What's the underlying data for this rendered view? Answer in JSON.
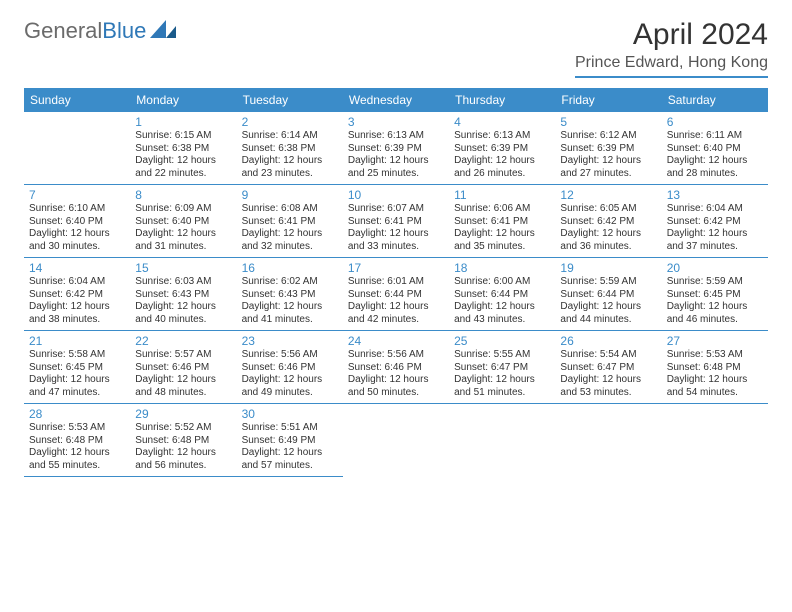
{
  "brand": {
    "part1": "General",
    "part2": "Blue"
  },
  "title": "April 2024",
  "location": "Prince Edward, Hong Kong",
  "header_bg": "#3b8cc9",
  "text_color": "#333333",
  "daynum_color": "#3b8cc9",
  "border_color": "#3b8cc9",
  "font_family": "Arial, Helvetica, sans-serif",
  "day_names": [
    "Sunday",
    "Monday",
    "Tuesday",
    "Wednesday",
    "Thursday",
    "Friday",
    "Saturday"
  ],
  "weeks": [
    [
      null,
      {
        "n": "1",
        "sr": "Sunrise: 6:15 AM",
        "ss": "Sunset: 6:38 PM",
        "d1": "Daylight: 12 hours",
        "d2": "and 22 minutes."
      },
      {
        "n": "2",
        "sr": "Sunrise: 6:14 AM",
        "ss": "Sunset: 6:38 PM",
        "d1": "Daylight: 12 hours",
        "d2": "and 23 minutes."
      },
      {
        "n": "3",
        "sr": "Sunrise: 6:13 AM",
        "ss": "Sunset: 6:39 PM",
        "d1": "Daylight: 12 hours",
        "d2": "and 25 minutes."
      },
      {
        "n": "4",
        "sr": "Sunrise: 6:13 AM",
        "ss": "Sunset: 6:39 PM",
        "d1": "Daylight: 12 hours",
        "d2": "and 26 minutes."
      },
      {
        "n": "5",
        "sr": "Sunrise: 6:12 AM",
        "ss": "Sunset: 6:39 PM",
        "d1": "Daylight: 12 hours",
        "d2": "and 27 minutes."
      },
      {
        "n": "6",
        "sr": "Sunrise: 6:11 AM",
        "ss": "Sunset: 6:40 PM",
        "d1": "Daylight: 12 hours",
        "d2": "and 28 minutes."
      }
    ],
    [
      {
        "n": "7",
        "sr": "Sunrise: 6:10 AM",
        "ss": "Sunset: 6:40 PM",
        "d1": "Daylight: 12 hours",
        "d2": "and 30 minutes."
      },
      {
        "n": "8",
        "sr": "Sunrise: 6:09 AM",
        "ss": "Sunset: 6:40 PM",
        "d1": "Daylight: 12 hours",
        "d2": "and 31 minutes."
      },
      {
        "n": "9",
        "sr": "Sunrise: 6:08 AM",
        "ss": "Sunset: 6:41 PM",
        "d1": "Daylight: 12 hours",
        "d2": "and 32 minutes."
      },
      {
        "n": "10",
        "sr": "Sunrise: 6:07 AM",
        "ss": "Sunset: 6:41 PM",
        "d1": "Daylight: 12 hours",
        "d2": "and 33 minutes."
      },
      {
        "n": "11",
        "sr": "Sunrise: 6:06 AM",
        "ss": "Sunset: 6:41 PM",
        "d1": "Daylight: 12 hours",
        "d2": "and 35 minutes."
      },
      {
        "n": "12",
        "sr": "Sunrise: 6:05 AM",
        "ss": "Sunset: 6:42 PM",
        "d1": "Daylight: 12 hours",
        "d2": "and 36 minutes."
      },
      {
        "n": "13",
        "sr": "Sunrise: 6:04 AM",
        "ss": "Sunset: 6:42 PM",
        "d1": "Daylight: 12 hours",
        "d2": "and 37 minutes."
      }
    ],
    [
      {
        "n": "14",
        "sr": "Sunrise: 6:04 AM",
        "ss": "Sunset: 6:42 PM",
        "d1": "Daylight: 12 hours",
        "d2": "and 38 minutes."
      },
      {
        "n": "15",
        "sr": "Sunrise: 6:03 AM",
        "ss": "Sunset: 6:43 PM",
        "d1": "Daylight: 12 hours",
        "d2": "and 40 minutes."
      },
      {
        "n": "16",
        "sr": "Sunrise: 6:02 AM",
        "ss": "Sunset: 6:43 PM",
        "d1": "Daylight: 12 hours",
        "d2": "and 41 minutes."
      },
      {
        "n": "17",
        "sr": "Sunrise: 6:01 AM",
        "ss": "Sunset: 6:44 PM",
        "d1": "Daylight: 12 hours",
        "d2": "and 42 minutes."
      },
      {
        "n": "18",
        "sr": "Sunrise: 6:00 AM",
        "ss": "Sunset: 6:44 PM",
        "d1": "Daylight: 12 hours",
        "d2": "and 43 minutes."
      },
      {
        "n": "19",
        "sr": "Sunrise: 5:59 AM",
        "ss": "Sunset: 6:44 PM",
        "d1": "Daylight: 12 hours",
        "d2": "and 44 minutes."
      },
      {
        "n": "20",
        "sr": "Sunrise: 5:59 AM",
        "ss": "Sunset: 6:45 PM",
        "d1": "Daylight: 12 hours",
        "d2": "and 46 minutes."
      }
    ],
    [
      {
        "n": "21",
        "sr": "Sunrise: 5:58 AM",
        "ss": "Sunset: 6:45 PM",
        "d1": "Daylight: 12 hours",
        "d2": "and 47 minutes."
      },
      {
        "n": "22",
        "sr": "Sunrise: 5:57 AM",
        "ss": "Sunset: 6:46 PM",
        "d1": "Daylight: 12 hours",
        "d2": "and 48 minutes."
      },
      {
        "n": "23",
        "sr": "Sunrise: 5:56 AM",
        "ss": "Sunset: 6:46 PM",
        "d1": "Daylight: 12 hours",
        "d2": "and 49 minutes."
      },
      {
        "n": "24",
        "sr": "Sunrise: 5:56 AM",
        "ss": "Sunset: 6:46 PM",
        "d1": "Daylight: 12 hours",
        "d2": "and 50 minutes."
      },
      {
        "n": "25",
        "sr": "Sunrise: 5:55 AM",
        "ss": "Sunset: 6:47 PM",
        "d1": "Daylight: 12 hours",
        "d2": "and 51 minutes."
      },
      {
        "n": "26",
        "sr": "Sunrise: 5:54 AM",
        "ss": "Sunset: 6:47 PM",
        "d1": "Daylight: 12 hours",
        "d2": "and 53 minutes."
      },
      {
        "n": "27",
        "sr": "Sunrise: 5:53 AM",
        "ss": "Sunset: 6:48 PM",
        "d1": "Daylight: 12 hours",
        "d2": "and 54 minutes."
      }
    ],
    [
      {
        "n": "28",
        "sr": "Sunrise: 5:53 AM",
        "ss": "Sunset: 6:48 PM",
        "d1": "Daylight: 12 hours",
        "d2": "and 55 minutes."
      },
      {
        "n": "29",
        "sr": "Sunrise: 5:52 AM",
        "ss": "Sunset: 6:48 PM",
        "d1": "Daylight: 12 hours",
        "d2": "and 56 minutes."
      },
      {
        "n": "30",
        "sr": "Sunrise: 5:51 AM",
        "ss": "Sunset: 6:49 PM",
        "d1": "Daylight: 12 hours",
        "d2": "and 57 minutes."
      },
      null,
      null,
      null,
      null
    ]
  ]
}
